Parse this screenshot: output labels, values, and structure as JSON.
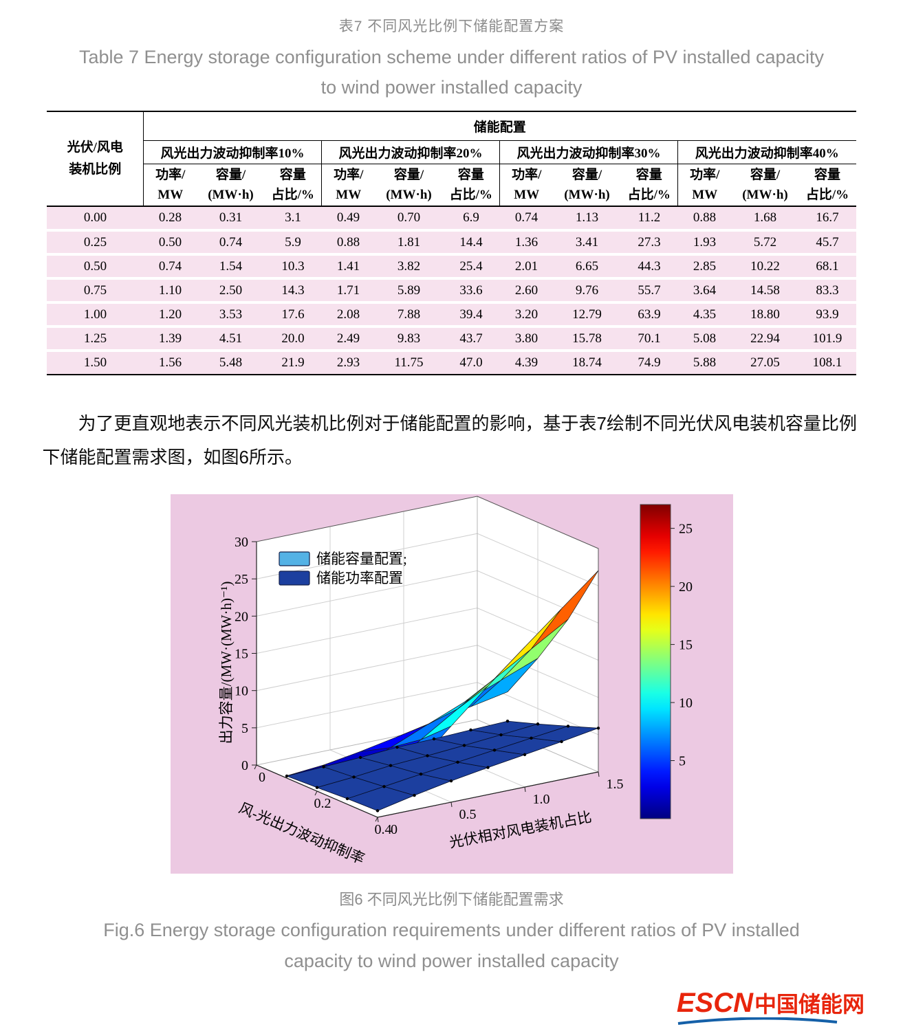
{
  "table": {
    "title_zh": "表7  不同风光比例下储能配置方案",
    "title_en_line1": "Table 7  Energy storage configuration scheme under different ratios of PV installed capacity",
    "title_en_line2": "to wind power installed capacity",
    "row_header_line1": "光伏/风电",
    "row_header_line2": "装机比例",
    "span_header": "储能配置",
    "group_headers": [
      "风光出力波动抑制率10%",
      "风光出力波动抑制率20%",
      "风光出力波动抑制率30%",
      "风光出力波动抑制率40%"
    ],
    "sub_headers": [
      [
        "功率/",
        "MW"
      ],
      [
        "容量/",
        "(MW·h)"
      ],
      [
        "容量",
        "占比/%"
      ]
    ],
    "rows": [
      {
        "ratio": "0.00",
        "values": [
          "0.28",
          "0.31",
          "3.1",
          "0.49",
          "0.70",
          "6.9",
          "0.74",
          "1.13",
          "11.2",
          "0.88",
          "1.68",
          "16.7"
        ]
      },
      {
        "ratio": "0.25",
        "values": [
          "0.50",
          "0.74",
          "5.9",
          "0.88",
          "1.81",
          "14.4",
          "1.36",
          "3.41",
          "27.3",
          "1.93",
          "5.72",
          "45.7"
        ]
      },
      {
        "ratio": "0.50",
        "values": [
          "0.74",
          "1.54",
          "10.3",
          "1.41",
          "3.82",
          "25.4",
          "2.01",
          "6.65",
          "44.3",
          "2.85",
          "10.22",
          "68.1"
        ]
      },
      {
        "ratio": "0.75",
        "values": [
          "1.10",
          "2.50",
          "14.3",
          "1.71",
          "5.89",
          "33.6",
          "2.60",
          "9.76",
          "55.7",
          "3.64",
          "14.58",
          "83.3"
        ]
      },
      {
        "ratio": "1.00",
        "values": [
          "1.20",
          "3.53",
          "17.6",
          "2.08",
          "7.88",
          "39.4",
          "3.20",
          "12.79",
          "63.9",
          "4.35",
          "18.80",
          "93.9"
        ]
      },
      {
        "ratio": "1.25",
        "values": [
          "1.39",
          "4.51",
          "20.0",
          "2.49",
          "9.83",
          "43.7",
          "3.80",
          "15.78",
          "70.1",
          "5.08",
          "22.94",
          "101.9"
        ]
      },
      {
        "ratio": "1.50",
        "values": [
          "1.56",
          "5.48",
          "21.9",
          "2.93",
          "11.75",
          "47.0",
          "4.39",
          "18.74",
          "74.9",
          "5.88",
          "27.05",
          "108.1"
        ]
      }
    ],
    "stripe_color": "#f7e2ee"
  },
  "paragraph": "为了更直观地表示不同风光装机比例对于储能配置的影响，基于表7绘制不同光伏风电装机容量比例下储能配置需求图，如图6所示。",
  "figure": {
    "background": "#ecc9e2",
    "caption_zh": "图6   不同风光比例下储能配置需求",
    "caption_en_line1": "Fig.6  Energy storage configuration requirements under different ratios of PV installed",
    "caption_en_line2": "capacity to wind power installed capacity",
    "legend": [
      {
        "label": "储能容量配置;",
        "color": "#54b2e5"
      },
      {
        "label": "储能功率配置",
        "color": "#1c3f9f"
      }
    ]
  },
  "chart_data": {
    "type": "surface",
    "title": "不同风光比例下储能配置需求",
    "x_ratio": [
      0,
      0.25,
      0.5,
      0.75,
      1.0,
      1.25,
      1.5
    ],
    "y_suppression": [
      0.1,
      0.2,
      0.3,
      0.4
    ],
    "series": [
      {
        "name": "储能容量配置",
        "unit": "MW·h",
        "values": [
          [
            0.31,
            0.74,
            1.54,
            2.5,
            3.53,
            4.51,
            5.48
          ],
          [
            0.7,
            1.81,
            3.82,
            5.89,
            7.88,
            9.83,
            11.75
          ],
          [
            1.13,
            3.41,
            6.65,
            9.76,
            12.79,
            15.78,
            18.74
          ],
          [
            1.68,
            5.72,
            10.22,
            14.58,
            18.8,
            22.94,
            27.05
          ]
        ]
      },
      {
        "name": "储能功率配置",
        "unit": "MW",
        "values": [
          [
            0.28,
            0.5,
            0.74,
            1.1,
            1.2,
            1.39,
            1.56
          ],
          [
            0.49,
            0.88,
            1.41,
            1.71,
            2.08,
            2.49,
            2.93
          ],
          [
            0.74,
            1.36,
            2.01,
            2.6,
            3.2,
            3.8,
            4.39
          ],
          [
            0.88,
            1.93,
            2.85,
            3.64,
            4.35,
            5.08,
            5.88
          ]
        ]
      }
    ],
    "xlabel": "光伏相对风电装机占比",
    "ylabel": "风-光出力波动抑制率",
    "zlabel": "出力容量/(MW·(MW·h)⁻¹)",
    "zlim": [
      0,
      30
    ],
    "zticks": [
      0,
      5,
      10,
      15,
      20,
      25,
      30
    ],
    "xticks": [
      0,
      0.5,
      1.0,
      1.5
    ],
    "xtick_labels": [
      "0",
      "0.5",
      "1.0",
      "1.5"
    ],
    "yticks": [
      0,
      0.2,
      0.4
    ],
    "ytick_labels": [
      "0",
      "0.2",
      "0.4"
    ],
    "colorbar_ticks": [
      5,
      10,
      15,
      20,
      25
    ],
    "color_range": [
      0,
      27.05
    ],
    "grid": true,
    "legend_position": "top-left"
  },
  "logo": {
    "text_en": "ESCN",
    "text_zh": "中国储能网",
    "color": "#e8250c",
    "underline_color": "#1460a8"
  }
}
